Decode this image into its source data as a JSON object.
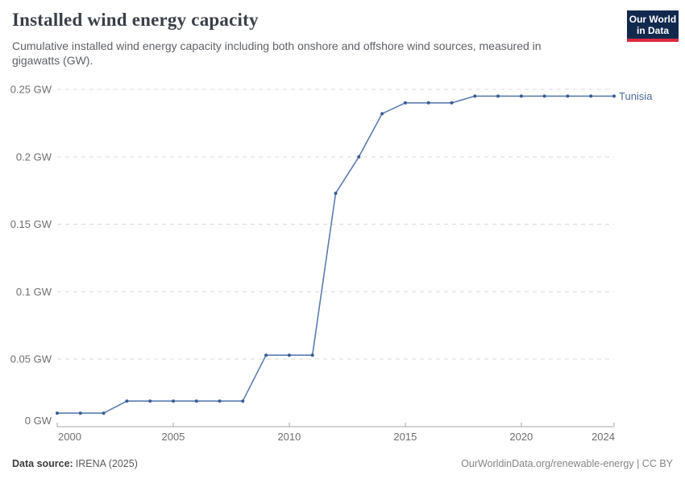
{
  "header": {
    "title": "Installed wind energy capacity",
    "subtitle": "Cumulative installed wind energy capacity including both onshore and offshore wind sources, measured in gigawatts (GW).",
    "logo": {
      "line1": "Our World",
      "line2": "in Data",
      "bg_color": "#12294E",
      "accent_color": "#DC2A41"
    }
  },
  "chart_data": {
    "type": "line",
    "title": "Installed wind energy capacity",
    "xlabel": "",
    "ylabel": "",
    "unit": " GW",
    "xlim": [
      2000,
      2024
    ],
    "ylim": [
      0,
      0.25
    ],
    "x_ticks": [
      2000,
      2005,
      2010,
      2015,
      2020,
      2024
    ],
    "y_ticks": [
      0,
      0.05,
      0.1,
      0.15,
      0.2,
      0.25
    ],
    "grid": "horizontal-dashed",
    "legend_position": "end-of-line-label",
    "series": [
      {
        "name": "Tunisia",
        "x": [
          2000,
          2001,
          2002,
          2003,
          2004,
          2005,
          2006,
          2007,
          2008,
          2009,
          2010,
          2011,
          2012,
          2013,
          2014,
          2015,
          2016,
          2017,
          2018,
          2019,
          2020,
          2021,
          2022,
          2023,
          2024
        ],
        "values": [
          0.01,
          0.01,
          0.01,
          0.019,
          0.019,
          0.019,
          0.019,
          0.019,
          0.019,
          0.053,
          0.053,
          0.053,
          0.173,
          0.2,
          0.232,
          0.24,
          0.24,
          0.24,
          0.245,
          0.245,
          0.245,
          0.245,
          0.245,
          0.245,
          0.245
        ]
      }
    ],
    "colors": {
      "line": "#5B7CB0",
      "marker": "#3A5B96",
      "series_label": "#4C6A9C",
      "grid": "#DADADA",
      "axis": "#A6A6A6",
      "tick_label": "#6E6E6E"
    }
  },
  "footer": {
    "source_label": "Data source:",
    "source_value": "IRENA (2025)",
    "credit": "OurWorldinData.org/renewable-energy | CC BY"
  }
}
